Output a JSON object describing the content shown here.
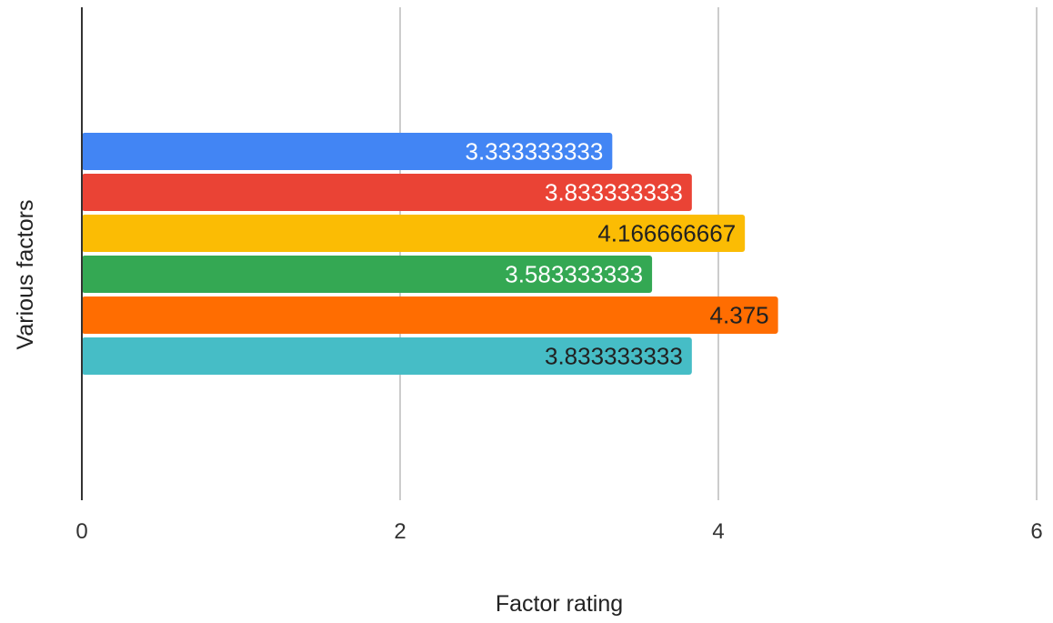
{
  "chart_data": {
    "type": "bar",
    "orientation": "horizontal",
    "title": "",
    "xlabel": "Factor rating",
    "ylabel": "Various factors",
    "xlim": [
      0,
      6
    ],
    "x_ticks": [
      "0",
      "2",
      "4",
      "6"
    ],
    "grid": true,
    "legend": "none",
    "series": [
      {
        "value": 3.333333333,
        "label": "3.333333333",
        "color": "#4285f4",
        "label_color": "#ffffff"
      },
      {
        "value": 3.833333333,
        "label": "3.833333333",
        "color": "#ea4335",
        "label_color": "#ffffff"
      },
      {
        "value": 4.166666667,
        "label": "4.166666667",
        "color": "#fbbc04",
        "label_color": "#212121"
      },
      {
        "value": 3.583333333,
        "label": "3.583333333",
        "color": "#34a853",
        "label_color": "#ffffff"
      },
      {
        "value": 4.375,
        "label": "4.375",
        "color": "#ff6d01",
        "label_color": "#212121"
      },
      {
        "value": 3.833333333,
        "label": "3.833333333",
        "color": "#46bdc6",
        "label_color": "#212121"
      }
    ]
  }
}
